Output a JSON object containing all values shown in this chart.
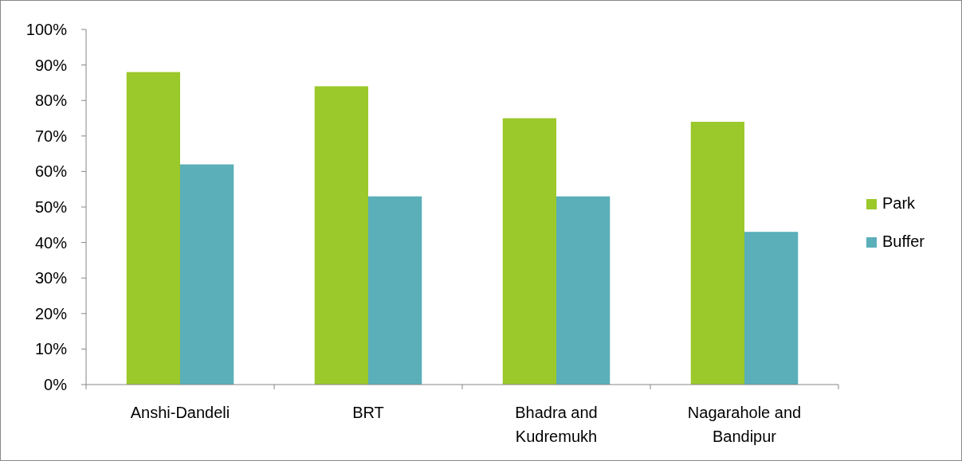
{
  "chart_data": {
    "type": "bar",
    "categories": [
      "Anshi-Dandeli",
      "BRT",
      "Bhadra and Kudremukh",
      "Nagarahole and Bandipur"
    ],
    "series": [
      {
        "name": "Park",
        "color": "#9bc82a",
        "values": [
          88,
          84,
          75,
          74
        ]
      },
      {
        "name": "Buffer",
        "color": "#5aafb9",
        "values": [
          62,
          53,
          53,
          43
        ]
      }
    ],
    "ylim": [
      0,
      100
    ],
    "yticks": [
      {
        "value": 0,
        "label": "0%"
      },
      {
        "value": 10,
        "label": "10%"
      },
      {
        "value": 20,
        "label": "20%"
      },
      {
        "value": 30,
        "label": "30%"
      },
      {
        "value": 40,
        "label": "40%"
      },
      {
        "value": 50,
        "label": "50%"
      },
      {
        "value": 60,
        "label": "60%"
      },
      {
        "value": 70,
        "label": "70%"
      },
      {
        "value": 80,
        "label": "80%"
      },
      {
        "value": 90,
        "label": "90%"
      },
      {
        "value": 100,
        "label": "100%"
      }
    ],
    "grid": false,
    "legend": "right"
  }
}
